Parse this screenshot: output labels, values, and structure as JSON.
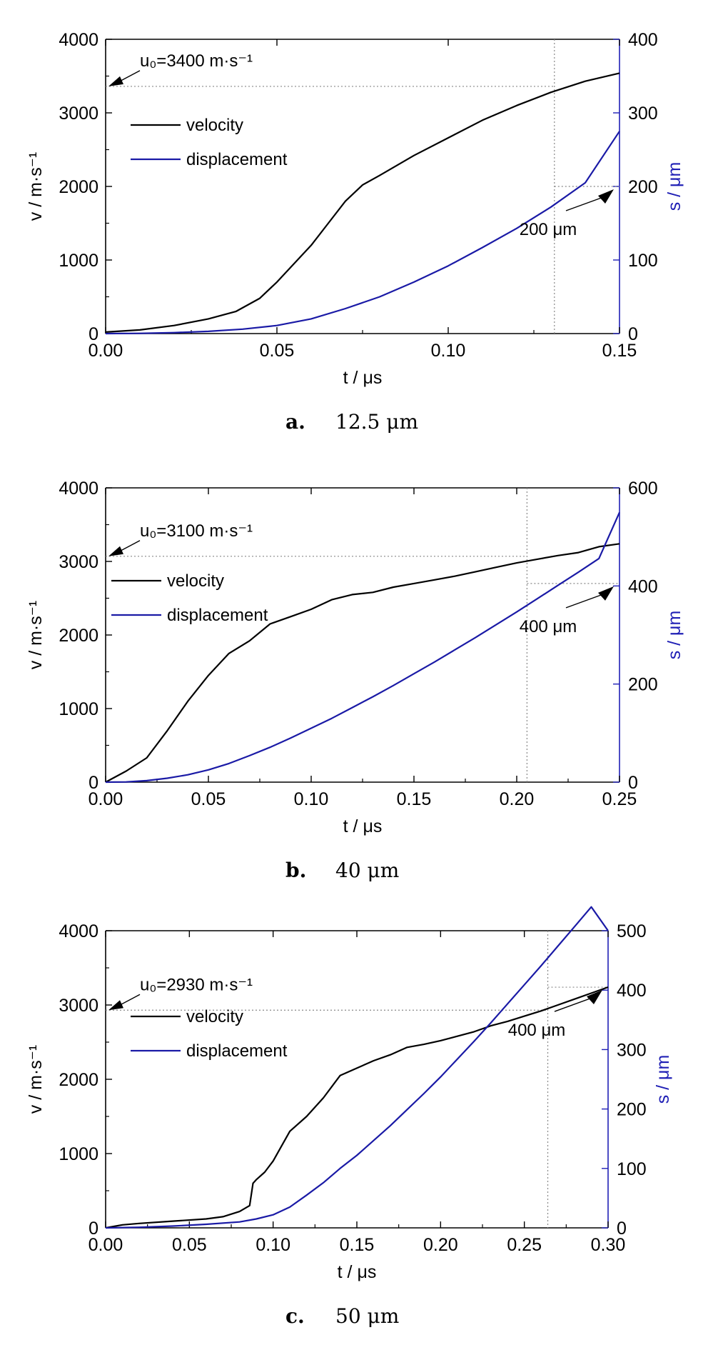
{
  "chart_data": [
    {
      "type": "line",
      "panel": "a",
      "caption": {
        "letter": "a.",
        "text": "12.5 μm"
      },
      "xlabel": "t / μs",
      "ylabel_left": "v / m·s⁻¹",
      "ylabel_right": "s / μm",
      "xlim": [
        0,
        0.15
      ],
      "xticks": [
        "0.00",
        "0.05",
        "0.10",
        "0.15"
      ],
      "xtick_values": [
        0,
        0.05,
        0.1,
        0.15
      ],
      "ylim_left": [
        0,
        4000
      ],
      "yticks_left": [
        "0",
        "1000",
        "2000",
        "3000",
        "4000"
      ],
      "ylim_right": [
        0,
        400
      ],
      "yticks_right": [
        "0",
        "100",
        "200",
        "300",
        "400"
      ],
      "legend": [
        "velocity",
        "displacement"
      ],
      "annotation_velocity": "u₀=3400 m·s⁻¹",
      "annotation_displacement": "200 μm",
      "marker_velocity": 3360,
      "marker_displacement": 200,
      "marker_time": 0.131,
      "series": [
        {
          "name": "velocity",
          "axis": "left",
          "color": "#000000",
          "x": [
            0,
            0.01,
            0.02,
            0.03,
            0.038,
            0.045,
            0.05,
            0.055,
            0.06,
            0.065,
            0.07,
            0.075,
            0.08,
            0.09,
            0.1,
            0.11,
            0.12,
            0.13,
            0.14,
            0.15
          ],
          "y": [
            20,
            50,
            110,
            200,
            300,
            480,
            700,
            950,
            1200,
            1500,
            1800,
            2020,
            2150,
            2420,
            2660,
            2900,
            3100,
            3280,
            3430,
            3540
          ]
        },
        {
          "name": "displacement",
          "axis": "right",
          "color": "#1a1aa6",
          "x": [
            0,
            0.01,
            0.02,
            0.03,
            0.04,
            0.05,
            0.06,
            0.07,
            0.08,
            0.09,
            0.1,
            0.11,
            0.12,
            0.13,
            0.14,
            0.15
          ],
          "y": [
            0,
            0.3,
            1.3,
            3,
            6,
            11,
            20,
            34,
            50,
            70,
            92,
            117,
            143,
            172,
            205,
            275
          ]
        }
      ]
    },
    {
      "type": "line",
      "panel": "b",
      "caption": {
        "letter": "b.",
        "text": "40 μm"
      },
      "xlabel": "t / μs",
      "ylabel_left": "v / m·s⁻¹",
      "ylabel_right": "s / μm",
      "xlim": [
        0,
        0.25
      ],
      "xticks": [
        "0.00",
        "0.05",
        "0.10",
        "0.15",
        "0.20",
        "0.25"
      ],
      "xtick_values": [
        0,
        0.05,
        0.1,
        0.15,
        0.2,
        0.25
      ],
      "ylim_left": [
        0,
        4000
      ],
      "yticks_left": [
        "0",
        "1000",
        "2000",
        "3000",
        "4000"
      ],
      "ylim_right": [
        0,
        600
      ],
      "yticks_right": [
        "0",
        "200",
        "400",
        "600"
      ],
      "legend": [
        "velocity",
        "displacement"
      ],
      "annotation_velocity": "u₀=3100 m·s⁻¹",
      "annotation_displacement": "400 μm",
      "marker_velocity": 3070,
      "marker_displacement": 405,
      "marker_time": 0.205,
      "series": [
        {
          "name": "velocity",
          "axis": "left",
          "color": "#000000",
          "x": [
            0,
            0.01,
            0.02,
            0.03,
            0.04,
            0.05,
            0.06,
            0.07,
            0.08,
            0.09,
            0.1,
            0.11,
            0.12,
            0.13,
            0.14,
            0.15,
            0.16,
            0.17,
            0.18,
            0.19,
            0.2,
            0.21,
            0.22,
            0.23,
            0.24,
            0.25
          ],
          "y": [
            0,
            150,
            330,
            700,
            1100,
            1450,
            1750,
            1920,
            2150,
            2250,
            2350,
            2480,
            2550,
            2580,
            2650,
            2700,
            2750,
            2800,
            2860,
            2920,
            2980,
            3030,
            3080,
            3120,
            3200,
            3240
          ]
        },
        {
          "name": "displacement",
          "axis": "right",
          "color": "#1a1aa6",
          "x": [
            0,
            0.01,
            0.02,
            0.03,
            0.04,
            0.05,
            0.06,
            0.07,
            0.08,
            0.09,
            0.1,
            0.11,
            0.12,
            0.13,
            0.14,
            0.15,
            0.16,
            0.17,
            0.18,
            0.19,
            0.2,
            0.21,
            0.22,
            0.23,
            0.24,
            0.25
          ],
          "y": [
            0,
            0.5,
            3,
            8,
            15,
            25,
            38,
            54,
            71,
            90,
            110,
            130,
            152,
            174,
            197,
            221,
            245,
            270,
            295,
            321,
            347,
            374,
            401,
            428,
            456,
            550
          ]
        }
      ]
    },
    {
      "type": "line",
      "panel": "c",
      "caption": {
        "letter": "c.",
        "text": "50 μm"
      },
      "xlabel": "t / μs",
      "ylabel_left": "v / m·s⁻¹",
      "ylabel_right": "s / μm",
      "xlim": [
        0,
        0.3
      ],
      "xticks": [
        "0.00",
        "0.05",
        "0.10",
        "0.15",
        "0.20",
        "0.25",
        "0.30"
      ],
      "xtick_values": [
        0,
        0.05,
        0.1,
        0.15,
        0.2,
        0.25,
        0.3
      ],
      "ylim_left": [
        0,
        4000
      ],
      "yticks_left": [
        "0",
        "1000",
        "2000",
        "3000",
        "4000"
      ],
      "ylim_right": [
        0,
        500
      ],
      "yticks_right": [
        "0",
        "100",
        "200",
        "300",
        "400",
        "500"
      ],
      "legend": [
        "velocity",
        "displacement"
      ],
      "annotation_velocity": "u₀=2930 m·s⁻¹",
      "annotation_displacement": "400 μm",
      "marker_velocity": 2930,
      "marker_displacement": 405,
      "marker_time": 0.264,
      "series": [
        {
          "name": "velocity",
          "axis": "left",
          "color": "#000000",
          "x": [
            0,
            0.01,
            0.02,
            0.04,
            0.06,
            0.07,
            0.08,
            0.086,
            0.088,
            0.09,
            0.095,
            0.1,
            0.105,
            0.11,
            0.12,
            0.13,
            0.14,
            0.15,
            0.16,
            0.17,
            0.18,
            0.19,
            0.2,
            0.21,
            0.22,
            0.23,
            0.24,
            0.25,
            0.26,
            0.27,
            0.28,
            0.29,
            0.3
          ],
          "y": [
            0,
            40,
            60,
            90,
            120,
            150,
            220,
            300,
            600,
            650,
            750,
            900,
            1100,
            1300,
            1500,
            1750,
            2050,
            2150,
            2250,
            2330,
            2430,
            2470,
            2520,
            2580,
            2640,
            2720,
            2780,
            2850,
            2920,
            3000,
            3080,
            3160,
            3240
          ]
        },
        {
          "name": "displacement",
          "axis": "right",
          "color": "#1a1aa6",
          "x": [
            0,
            0.02,
            0.04,
            0.06,
            0.08,
            0.09,
            0.1,
            0.11,
            0.12,
            0.13,
            0.14,
            0.15,
            0.16,
            0.17,
            0.18,
            0.19,
            0.2,
            0.21,
            0.22,
            0.23,
            0.24,
            0.25,
            0.26,
            0.27,
            0.28,
            0.29,
            0.3
          ],
          "y": [
            0,
            1,
            3,
            6,
            10,
            15,
            22,
            35,
            55,
            76,
            100,
            122,
            147,
            172,
            199,
            226,
            254,
            284,
            314,
            345,
            377,
            409,
            441,
            474,
            507,
            540,
            500
          ]
        }
      ]
    }
  ]
}
